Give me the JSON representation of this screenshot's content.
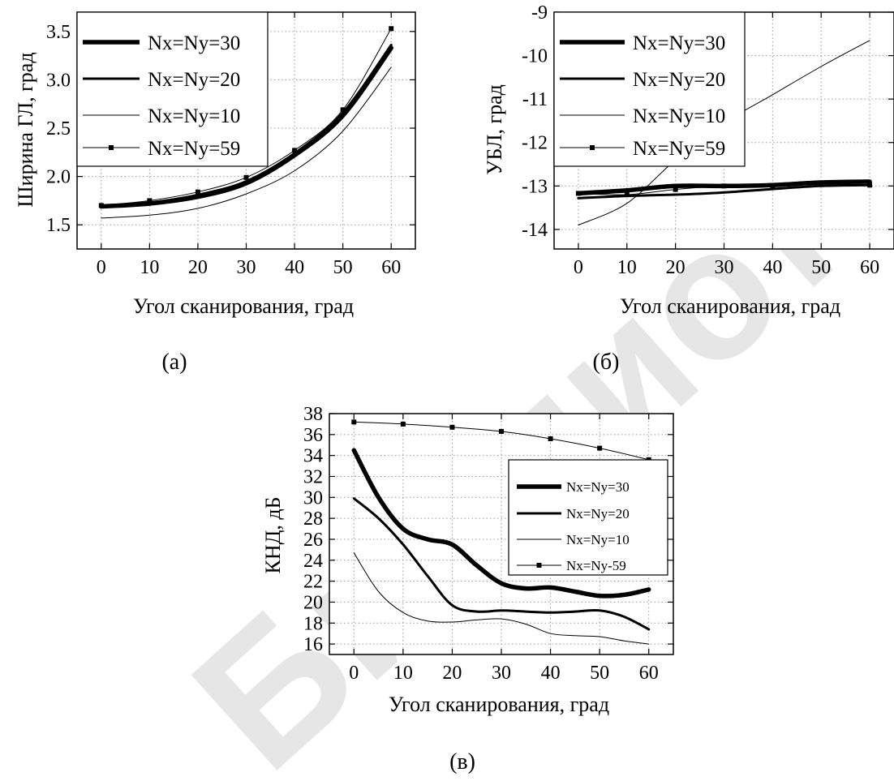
{
  "watermark": "Библиотека БГУИР",
  "chart_data": [
    {
      "id": "a",
      "type": "line",
      "caption": "(а)",
      "xlabel": "Угол сканирования,  град",
      "ylabel": "Ширина ГЛ,  град",
      "xlim": [
        -5,
        65
      ],
      "ylim": [
        1.25,
        3.7
      ],
      "xticks": [
        0,
        10,
        20,
        30,
        40,
        50,
        60
      ],
      "yticks": [
        1.5,
        2.0,
        2.5,
        3.0,
        3.5
      ],
      "ytick_labels": [
        "1.5",
        "2.0",
        "2.5",
        "3.0",
        "3.5"
      ],
      "grid": true,
      "legend": "top-left",
      "series": [
        {
          "name": "Nx=Ny=30",
          "width": 5.5,
          "marker": false,
          "x": [
            0,
            10,
            20,
            30,
            40,
            50,
            60
          ],
          "y": [
            1.69,
            1.72,
            1.79,
            1.93,
            2.22,
            2.63,
            3.33
          ]
        },
        {
          "name": "Nx=Ny=20",
          "width": 3,
          "marker": false,
          "x": [
            0,
            10,
            20,
            30,
            40,
            50,
            60
          ],
          "y": [
            1.7,
            1.73,
            1.81,
            1.95,
            2.24,
            2.66,
            3.36
          ]
        },
        {
          "name": "Nx=Ny=10",
          "width": 1,
          "marker": false,
          "x": [
            0,
            10,
            20,
            30,
            40,
            50,
            60
          ],
          "y": [
            1.57,
            1.6,
            1.67,
            1.82,
            2.06,
            2.47,
            3.13
          ]
        },
        {
          "name": "Nx=Ny=59",
          "width": 1,
          "marker": true,
          "x": [
            0,
            10,
            20,
            30,
            40,
            50,
            60
          ],
          "y": [
            1.7,
            1.75,
            1.84,
            1.99,
            2.27,
            2.69,
            3.53
          ]
        }
      ]
    },
    {
      "id": "b",
      "type": "line",
      "caption": "(б)",
      "xlabel": "Угол сканирования,  град",
      "ylabel": "УБЛ,  град",
      "xlim": [
        -5,
        65
      ],
      "ylim": [
        -14.45,
        -9
      ],
      "xticks": [
        0,
        10,
        20,
        30,
        40,
        50,
        60
      ],
      "yticks": [
        -9,
        -10,
        -11,
        -12,
        -13,
        -14
      ],
      "ytick_labels": [
        "-9",
        "-10",
        "-11",
        "-12",
        "-13",
        "-14"
      ],
      "grid": true,
      "legend": "top-left",
      "series": [
        {
          "name": "Nx=Ny=30",
          "width": 5.5,
          "marker": false,
          "x": [
            0,
            10,
            20,
            30,
            40,
            50,
            60
          ],
          "y": [
            -13.17,
            -13.1,
            -13.0,
            -13.0,
            -12.98,
            -12.92,
            -12.9
          ]
        },
        {
          "name": "Nx=Ny=20",
          "width": 3,
          "marker": false,
          "x": [
            0,
            10,
            20,
            30,
            40,
            50,
            60
          ],
          "y": [
            -13.28,
            -13.23,
            -13.2,
            -13.15,
            -13.07,
            -13.0,
            -12.98
          ]
        },
        {
          "name": "Nx=Ny=10",
          "width": 1,
          "marker": false,
          "x": [
            0,
            10,
            20,
            30,
            40,
            50,
            60
          ],
          "y": [
            -13.9,
            -13.4,
            -12.4,
            -11.55,
            -10.9,
            -10.25,
            -9.65
          ]
        },
        {
          "name": "Nx=Ny=59",
          "width": 1,
          "marker": true,
          "x": [
            0,
            10,
            20,
            30,
            40,
            50,
            60
          ],
          "y": [
            -13.17,
            -13.2,
            -13.08,
            -13.0,
            -13.0,
            -12.95,
            -12.98
          ]
        }
      ]
    },
    {
      "id": "c",
      "type": "line",
      "caption": "(в)",
      "xlabel": "Угол сканирования,  град",
      "ylabel": "КНД,  дБ",
      "xlim": [
        -5,
        65
      ],
      "ylim": [
        15,
        38
      ],
      "xticks": [
        0,
        10,
        20,
        30,
        40,
        50,
        60
      ],
      "yticks": [
        16,
        18,
        20,
        22,
        24,
        26,
        28,
        30,
        32,
        34,
        36,
        38
      ],
      "ytick_labels": [
        "16",
        "18",
        "20",
        "22",
        "24",
        "26",
        "28",
        "30",
        "32",
        "34",
        "36",
        "38"
      ],
      "grid": true,
      "legend": "right",
      "series": [
        {
          "name": "Nx=Ny=30",
          "width": 5.5,
          "marker": false,
          "x": [
            0,
            5,
            10,
            15,
            20,
            25,
            30,
            35,
            40,
            45,
            50,
            55,
            60
          ],
          "y": [
            34.5,
            30.0,
            27.0,
            26.0,
            25.5,
            23.5,
            21.8,
            21.3,
            21.4,
            21.0,
            20.6,
            20.7,
            21.2
          ]
        },
        {
          "name": "Nx=Ny=20",
          "width": 3,
          "marker": false,
          "x": [
            0,
            5,
            10,
            15,
            20,
            25,
            30,
            35,
            40,
            45,
            50,
            55,
            60
          ],
          "y": [
            29.9,
            28.0,
            25.5,
            22.5,
            19.7,
            19.1,
            19.2,
            19.1,
            19.0,
            19.1,
            19.2,
            18.6,
            17.4
          ]
        },
        {
          "name": "Nx=Ny=10",
          "width": 1,
          "marker": false,
          "x": [
            0,
            5,
            10,
            15,
            20,
            25,
            30,
            35,
            40,
            45,
            50,
            55,
            60
          ],
          "y": [
            24.7,
            21.0,
            19.0,
            18.2,
            18.1,
            18.3,
            18.4,
            17.9,
            17.0,
            16.8,
            16.7,
            16.3,
            16.0
          ]
        },
        {
          "name": "Nx=Ny-59",
          "width": 1,
          "marker": true,
          "x": [
            0,
            10,
            20,
            30,
            40,
            50,
            60
          ],
          "y": [
            37.2,
            37.0,
            36.7,
            36.3,
            35.6,
            34.7,
            33.6
          ]
        }
      ]
    }
  ]
}
